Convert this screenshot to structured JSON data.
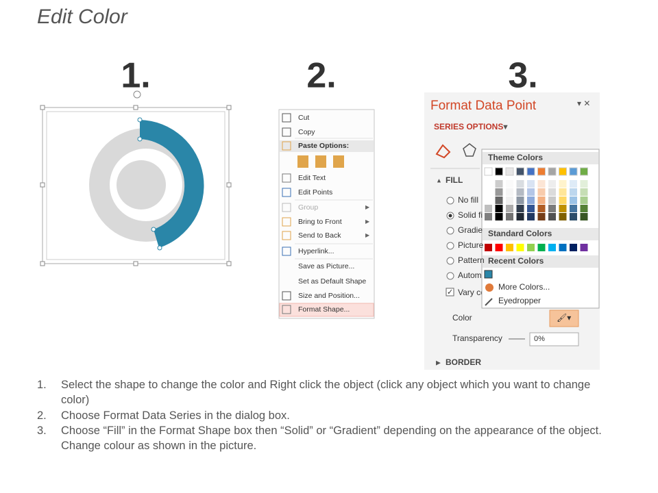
{
  "header": {
    "title": "Edit Color"
  },
  "steps": [
    "1.",
    "2.",
    "3."
  ],
  "context_menu": {
    "items": [
      "Cut",
      "Copy",
      "Paste Options:",
      "Edit Text",
      "Edit Points",
      "Group",
      "Bring to Front",
      "Send to Back",
      "Hyperlink...",
      "Save as Picture...",
      "Set as Default Shape",
      "Size and Position...",
      "Format Shape..."
    ]
  },
  "format_panel": {
    "title": "Format Data Point",
    "section": "SERIES OPTIONS",
    "fill": "FILL",
    "options": [
      "No fill",
      "Solid fi",
      "Gradie",
      "Picture",
      "Pattern",
      "Autom"
    ],
    "vary": "Vary co",
    "color_label": "Color",
    "transparency_label": "Transparency",
    "transparency_value": "0%",
    "border": "BORDER"
  },
  "color_popup": {
    "theme": "Theme Colors",
    "standard": "Standard Colors",
    "recent": "Recent Colors",
    "more": "More Colors...",
    "eyedropper": "Eyedropper"
  },
  "instructions": [
    {
      "marker": "1.",
      "text": "Select the shape to change the color and Right click the object (click any object which you want to change color)"
    },
    {
      "marker": "2.",
      "text": "Choose Format Data Series in the dialog box."
    },
    {
      "marker": "3.",
      "text": "Choose “Fill” in the Format Shape box then “Solid” or “Gradient” depending on the appearance of the object. Change colour as shown in the picture."
    }
  ]
}
